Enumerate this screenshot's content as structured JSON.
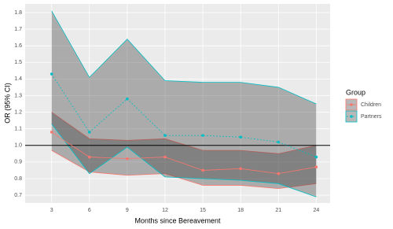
{
  "chart_data": {
    "type": "line-ribbon",
    "x_label": "Months since Bereavement",
    "y_label": "OR (95% CI)",
    "legend_title": "Group",
    "legend_position": "right",
    "grid": true,
    "x": [
      3,
      6,
      9,
      12,
      15,
      18,
      21,
      24
    ],
    "xlim": [
      0.9,
      25.1
    ],
    "xticks": [
      3,
      6,
      9,
      12,
      15,
      18,
      21,
      24
    ],
    "ylim": [
      0.653,
      1.852
    ],
    "yticks": [
      0.7,
      0.8,
      0.9,
      {
        "value": 1,
        "label": "1.0"
      },
      1.1,
      1.2,
      1.3,
      1.4,
      1.5,
      1.6,
      1.7,
      1.8
    ],
    "reference_line": 1,
    "series": [
      {
        "name": "Children",
        "color": "#f8766d",
        "dash": "none",
        "values": [
          1.08,
          0.93,
          0.92,
          0.93,
          0.85,
          0.86,
          0.83,
          0.87
        ],
        "lower": [
          0.97,
          0.84,
          0.82,
          0.83,
          0.76,
          0.76,
          0.74,
          0.77
        ],
        "upper": [
          1.2,
          1.04,
          1.03,
          1.04,
          0.97,
          0.97,
          0.95,
          1.0
        ]
      },
      {
        "name": "Partners",
        "color": "#00bfc4",
        "dash": "2,2",
        "values": [
          1.43,
          1.08,
          1.28,
          1.06,
          1.06,
          1.05,
          1.02,
          0.93
        ],
        "lower": [
          1.13,
          0.83,
          0.99,
          0.81,
          0.8,
          0.79,
          0.77,
          0.69
        ],
        "upper": [
          1.81,
          1.41,
          1.64,
          1.39,
          1.38,
          1.38,
          1.35,
          1.25
        ]
      }
    ]
  }
}
